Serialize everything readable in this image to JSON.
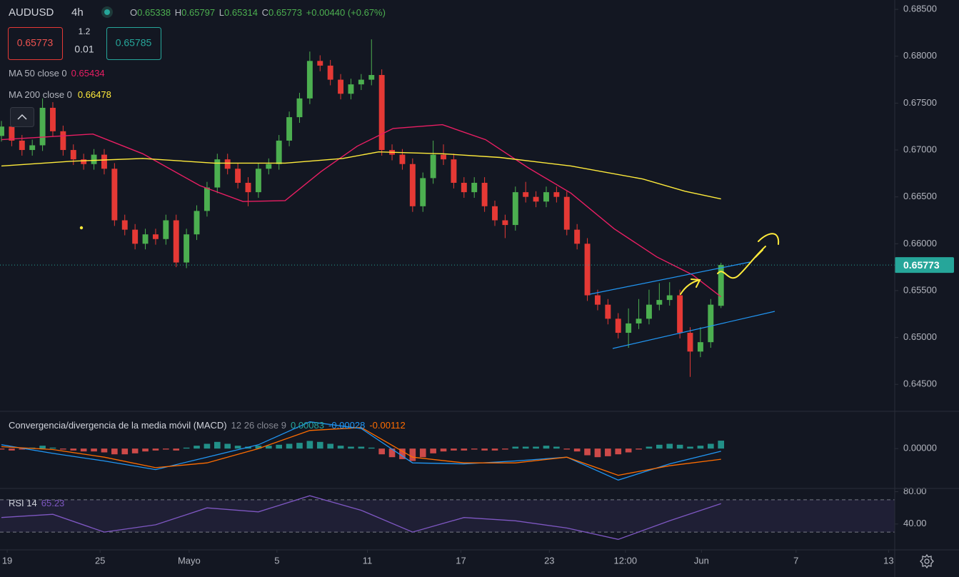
{
  "chart_data": [
    {
      "type": "candlestick",
      "title": "AUDUSD",
      "subtitle": "4h",
      "legend": [
        {
          "label": "O",
          "value": "0.65338"
        },
        {
          "label": "H",
          "value": "0.65797"
        },
        {
          "label": "L",
          "value": "0.65314"
        },
        {
          "label": "C",
          "value": "0.65773"
        }
      ],
      "change": "+0.00440 (+0.67%)",
      "trade": {
        "sell": "0.65773",
        "spread": "1.2",
        "quantity": "0.01",
        "buy": "0.65785"
      },
      "up_color": "#4caf50",
      "down_color": "#e53935",
      "x": [
        0,
        1,
        2,
        3,
        4,
        5,
        6,
        7,
        8,
        9,
        10,
        11,
        12,
        13,
        14,
        15,
        16,
        17,
        18,
        19,
        20,
        21,
        22,
        23,
        24,
        25,
        26,
        27,
        28,
        29,
        30,
        31,
        32,
        33,
        34,
        35,
        36,
        37,
        38,
        39,
        40,
        41,
        42,
        43,
        44,
        45,
        46,
        47,
        48,
        49,
        50,
        51,
        52,
        53,
        54,
        55,
        56,
        57,
        58,
        59,
        60,
        61,
        62,
        63,
        64,
        65,
        66,
        67,
        68,
        69,
        70
      ],
      "ohlc": [
        [
          0.6715,
          0.6731,
          0.6709,
          0.6725
        ],
        [
          0.6725,
          0.6731,
          0.6704,
          0.671
        ],
        [
          0.671,
          0.6716,
          0.6694,
          0.67
        ],
        [
          0.67,
          0.6711,
          0.6694,
          0.6705
        ],
        [
          0.6705,
          0.6755,
          0.6699,
          0.6745
        ],
        [
          0.6745,
          0.6751,
          0.6714,
          0.672
        ],
        [
          0.672,
          0.6726,
          0.6694,
          0.67
        ],
        [
          0.67,
          0.6706,
          0.6684,
          0.669
        ],
        [
          0.669,
          0.6696,
          0.6679,
          0.6685
        ],
        [
          0.6685,
          0.6701,
          0.6679,
          0.6695
        ],
        [
          0.6695,
          0.6701,
          0.6674,
          0.668
        ],
        [
          0.668,
          0.6686,
          0.6619,
          0.6625
        ],
        [
          0.6625,
          0.6631,
          0.6609,
          0.6615
        ],
        [
          0.6615,
          0.6621,
          0.6594,
          0.66
        ],
        [
          0.66,
          0.6616,
          0.6594,
          0.661
        ],
        [
          0.661,
          0.6616,
          0.6599,
          0.6605
        ],
        [
          0.6605,
          0.6631,
          0.6599,
          0.6625
        ],
        [
          0.6625,
          0.6631,
          0.6575,
          0.658
        ],
        [
          0.658,
          0.6616,
          0.6574,
          0.661
        ],
        [
          0.661,
          0.6641,
          0.6604,
          0.6635
        ],
        [
          0.6635,
          0.6666,
          0.6629,
          0.666
        ],
        [
          0.666,
          0.6696,
          0.6654,
          0.669
        ],
        [
          0.669,
          0.6696,
          0.6674,
          0.668
        ],
        [
          0.668,
          0.6686,
          0.6659,
          0.6665
        ],
        [
          0.6665,
          0.6671,
          0.664,
          0.6655
        ],
        [
          0.6655,
          0.6686,
          0.6649,
          0.668
        ],
        [
          0.668,
          0.6691,
          0.6674,
          0.6685
        ],
        [
          0.6685,
          0.6716,
          0.6679,
          0.671
        ],
        [
          0.671,
          0.6741,
          0.6704,
          0.6735
        ],
        [
          0.6735,
          0.6761,
          0.6729,
          0.6755
        ],
        [
          0.6755,
          0.6805,
          0.6749,
          0.6795
        ],
        [
          0.6795,
          0.6801,
          0.6784,
          0.679
        ],
        [
          0.679,
          0.6796,
          0.6769,
          0.6775
        ],
        [
          0.6775,
          0.6781,
          0.6754,
          0.676
        ],
        [
          0.676,
          0.6776,
          0.6754,
          0.677
        ],
        [
          0.677,
          0.6781,
          0.6764,
          0.6775
        ],
        [
          0.6775,
          0.6818,
          0.6769,
          0.678
        ],
        [
          0.678,
          0.6786,
          0.6694,
          0.67
        ],
        [
          0.67,
          0.6706,
          0.6689,
          0.6695
        ],
        [
          0.6695,
          0.6701,
          0.6679,
          0.6685
        ],
        [
          0.6685,
          0.6691,
          0.6634,
          0.664
        ],
        [
          0.664,
          0.6676,
          0.6634,
          0.667
        ],
        [
          0.667,
          0.671,
          0.6664,
          0.6695
        ],
        [
          0.6695,
          0.6706,
          0.6684,
          0.669
        ],
        [
          0.669,
          0.6696,
          0.6659,
          0.6665
        ],
        [
          0.6665,
          0.6671,
          0.6649,
          0.6655
        ],
        [
          0.6655,
          0.6671,
          0.6649,
          0.6665
        ],
        [
          0.6665,
          0.6671,
          0.6634,
          0.664
        ],
        [
          0.664,
          0.6646,
          0.6619,
          0.6625
        ],
        [
          0.6625,
          0.6631,
          0.6606,
          0.662
        ],
        [
          0.662,
          0.6661,
          0.6614,
          0.6655
        ],
        [
          0.6655,
          0.6666,
          0.6644,
          0.665
        ],
        [
          0.665,
          0.6656,
          0.6639,
          0.6645
        ],
        [
          0.6645,
          0.6661,
          0.6639,
          0.6655
        ],
        [
          0.6655,
          0.6661,
          0.6644,
          0.665
        ],
        [
          0.665,
          0.6656,
          0.6609,
          0.6615
        ],
        [
          0.6615,
          0.6621,
          0.6594,
          0.66
        ],
        [
          0.66,
          0.6606,
          0.6539,
          0.6545
        ],
        [
          0.6545,
          0.6551,
          0.6529,
          0.6535
        ],
        [
          0.6535,
          0.6541,
          0.6514,
          0.652
        ],
        [
          0.652,
          0.6526,
          0.6499,
          0.6505
        ],
        [
          0.6505,
          0.6531,
          0.6489,
          0.6515
        ],
        [
          0.6515,
          0.6541,
          0.6509,
          0.652
        ],
        [
          0.652,
          0.6551,
          0.6514,
          0.6535
        ],
        [
          0.6535,
          0.6558,
          0.6529,
          0.654
        ],
        [
          0.654,
          0.6559,
          0.6534,
          0.6545
        ],
        [
          0.6545,
          0.6551,
          0.6499,
          0.6505
        ],
        [
          0.6505,
          0.6511,
          0.6458,
          0.6485
        ],
        [
          0.6485,
          0.6511,
          0.6479,
          0.6495
        ],
        [
          0.6495,
          0.6541,
          0.6489,
          0.6535
        ],
        [
          0.65338,
          0.65797,
          0.65314,
          0.65773
        ]
      ],
      "series": [
        {
          "name": "MA 50 close 0",
          "color": "#e91e63",
          "last_label": "0.65434",
          "x": [
            0,
            8.9,
            13.75,
            19.3,
            23.5,
            27.6,
            31.1,
            34.6,
            38.1,
            42.9,
            47.1,
            51.25,
            55.4,
            59.6,
            63.75,
            67.2,
            70
          ],
          "values": [
            0.6711,
            0.6717,
            0.6696,
            0.6662,
            0.6645,
            0.6646,
            0.6677,
            0.6704,
            0.6723,
            0.6727,
            0.6711,
            0.6681,
            0.6654,
            0.6616,
            0.6586,
            0.6567,
            0.65434
          ]
        },
        {
          "name": "MA 200 close 0",
          "color": "#ffeb3b",
          "last_label": "0.66478",
          "x": [
            0,
            6.8,
            13.75,
            20.7,
            27.6,
            33.2,
            36.7,
            42.9,
            48.5,
            55.4,
            62.4,
            66.5,
            70
          ],
          "values": [
            0.6683,
            0.6688,
            0.6691,
            0.6686,
            0.6686,
            0.6691,
            0.6698,
            0.6696,
            0.6692,
            0.6683,
            0.6669,
            0.6656,
            0.66478
          ]
        }
      ],
      "last_price": "0.65773",
      "last_price_color": "#26a69a",
      "xlim": [
        0,
        86.9
      ],
      "xticks": [
        {
          "value": 0.56,
          "label": "19"
        },
        {
          "value": 9.6,
          "label": "25"
        },
        {
          "value": 18.26,
          "label": "Mayo"
        },
        {
          "value": 26.8,
          "label": "5"
        },
        {
          "value": 35.6,
          "label": "11"
        },
        {
          "value": 44.7,
          "label": "17"
        },
        {
          "value": 53.3,
          "label": "23"
        },
        {
          "value": 60.7,
          "label": "12:00"
        },
        {
          "value": 68.1,
          "label": "Jun"
        },
        {
          "value": 77.3,
          "label": "7"
        },
        {
          "value": 86.3,
          "label": "13"
        }
      ],
      "ylim": [
        0.6422,
        0.686
      ],
      "yticks": [
        {
          "value": 0.685,
          "label": "0.68500"
        },
        {
          "value": 0.68,
          "label": "0.68000"
        },
        {
          "value": 0.675,
          "label": "0.67500"
        },
        {
          "value": 0.67,
          "label": "0.67000"
        },
        {
          "value": 0.665,
          "label": "0.66500"
        },
        {
          "value": 0.66,
          "label": "0.66000"
        },
        {
          "value": 0.655,
          "label": "0.65500"
        },
        {
          "value": 0.65,
          "label": "0.65000"
        },
        {
          "value": 0.645,
          "label": "0.64500"
        }
      ]
    },
    {
      "type": "combo",
      "title": "Convergencia/divergencia de la media móvil (MACD)",
      "subtitle": "12 26 close 9",
      "xlim": [
        0,
        86.9
      ],
      "ylim": [
        -0.0041,
        0.0039
      ],
      "yticks": [
        {
          "value": 0,
          "label": "0.00000"
        }
      ],
      "histogram": {
        "up_color": "#26a69a",
        "down_color": "#ef5350",
        "last_label": "0.00083",
        "x": [
          0,
          1,
          2,
          3,
          4,
          5,
          6,
          7,
          8,
          9,
          10,
          11,
          12,
          13,
          14,
          15,
          16,
          17,
          18,
          19,
          20,
          21,
          22,
          23,
          24,
          25,
          26,
          27,
          28,
          29,
          30,
          31,
          32,
          33,
          34,
          35,
          36,
          37,
          38,
          39,
          40,
          41,
          42,
          43,
          44,
          45,
          46,
          47,
          48,
          49,
          50,
          51,
          52,
          53,
          54,
          55,
          56,
          57,
          58,
          59,
          60,
          61,
          62,
          63,
          64,
          65,
          66,
          67,
          68,
          69,
          70
        ],
        "values": [
          -0.0001,
          -0.0002,
          -0.0001,
          0.0001,
          0.0003,
          0.0001,
          -0.0001,
          -0.0002,
          -0.0003,
          -0.0003,
          -0.0004,
          -0.0006,
          -0.0006,
          -0.0005,
          -0.0003,
          -0.0002,
          -0.0001,
          -0.0002,
          0.0001,
          0.0003,
          0.0005,
          0.0007,
          0.0005,
          0.0003,
          0.0002,
          0.0003,
          0.0003,
          0.0004,
          0.0005,
          0.0006,
          0.0008,
          0.0007,
          0.0005,
          0.0003,
          0.0002,
          0.0002,
          0.0001,
          -0.0006,
          -0.0009,
          -0.0011,
          -0.0013,
          -0.0009,
          -0.0005,
          -0.0003,
          -0.0002,
          -0.0002,
          -0.0001,
          -0.0002,
          -0.0002,
          -0.0001,
          0.0002,
          0.0002,
          0.0002,
          0.0003,
          0.0002,
          -0.0001,
          -0.0003,
          -0.0007,
          -0.0009,
          -0.0008,
          -0.0006,
          -0.0004,
          -0.0001,
          0.0002,
          0.0004,
          0.0005,
          0.0004,
          0.0002,
          0.0003,
          0.0005,
          0.00083
        ]
      },
      "series": [
        {
          "color": "#2196f3",
          "last_label": "-0.00028",
          "x": [
            0,
            5,
            10,
            15,
            20,
            25,
            30,
            35,
            40,
            45,
            50,
            55,
            60,
            65,
            70
          ],
          "values": [
            0.0004,
            -0.0005,
            -0.0013,
            -0.0022,
            -0.0009,
            0.0004,
            0.0028,
            0.0021,
            -0.0015,
            -0.0016,
            -0.0013,
            -0.0009,
            -0.0033,
            -0.0016,
            -0.00028
          ]
        },
        {
          "color": "#ff6d00",
          "last_label": "-0.00112",
          "x": [
            0,
            5,
            10,
            15,
            20,
            25,
            30,
            35,
            40,
            45,
            50,
            55,
            60,
            65,
            70
          ],
          "values": [
            0.0002,
            -0.0001,
            -0.0009,
            -0.002,
            -0.0015,
            0,
            0.0019,
            0.0022,
            -0.0009,
            -0.0015,
            -0.0015,
            -0.0009,
            -0.0028,
            -0.0018,
            -0.00112
          ]
        }
      ]
    },
    {
      "type": "line",
      "title": "RSI 14",
      "last_label": "65.23",
      "color": "#7e57c2",
      "band_color": "rgba(126,87,194,0.12)",
      "bands": [
        30,
        70
      ],
      "xlim": [
        0,
        86.9
      ],
      "ylim": [
        8,
        84
      ],
      "yticks": [
        {
          "value": 80,
          "label": "80.00"
        },
        {
          "value": 40,
          "label": "40.00"
        }
      ],
      "x": [
        0,
        5,
        10,
        15,
        20,
        25,
        30,
        35,
        40,
        45,
        50,
        55,
        60,
        65,
        70
      ],
      "values": [
        48,
        52,
        30,
        39,
        60,
        55,
        75,
        57,
        30,
        48,
        44,
        35,
        21,
        44,
        65.23
      ]
    }
  ]
}
